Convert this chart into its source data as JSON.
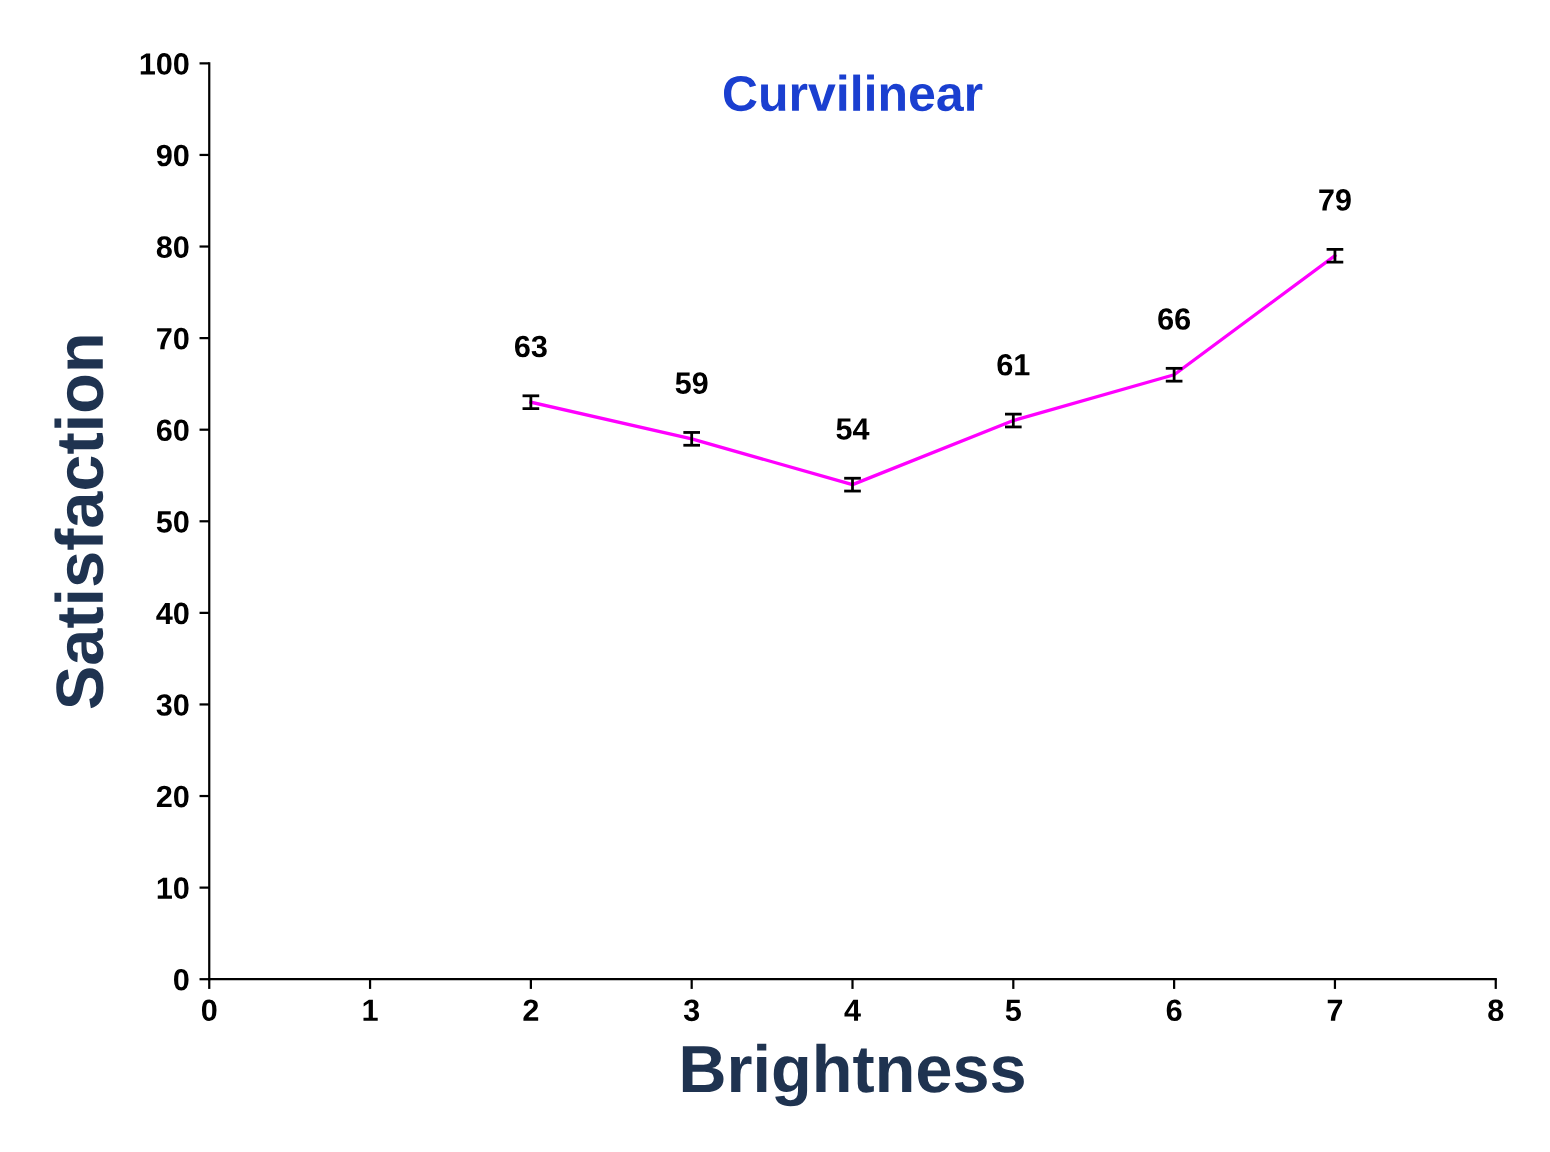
{
  "chart_data": {
    "type": "line",
    "title": "Curvilinear",
    "xlabel": "Brightness",
    "ylabel": "Satisfaction",
    "x": [
      2,
      3,
      4,
      5,
      6,
      7
    ],
    "series": [
      {
        "color": "#ff00ff",
        "values": [
          63,
          59,
          54,
          61,
          66,
          79
        ],
        "errors": [
          0.7,
          0.7,
          0.7,
          0.7,
          0.7,
          0.7
        ]
      }
    ],
    "xlim": [
      0,
      8
    ],
    "xticks": [
      0,
      1,
      2,
      3,
      4,
      5,
      6,
      7,
      8
    ],
    "ylim": [
      0,
      100
    ],
    "yticks": [
      0,
      10,
      20,
      30,
      40,
      50,
      60,
      70,
      80,
      90,
      100
    ],
    "data_labels": true,
    "grid": false,
    "marker": "none",
    "line_style": "solid"
  }
}
